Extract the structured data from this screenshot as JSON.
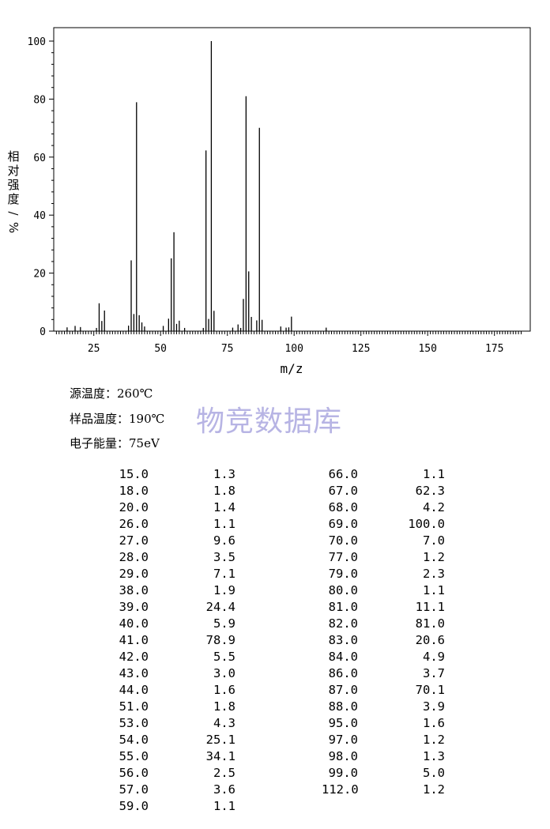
{
  "chart_data": {
    "type": "bar",
    "xlabel": "m/z",
    "ylabel": "相对强度/%",
    "xlim": [
      10,
      185
    ],
    "ylim": [
      0,
      100
    ],
    "x_ticks": [
      "25",
      "50",
      "75",
      "100",
      "125",
      "150",
      "175"
    ],
    "y_ticks": [
      "0",
      "20",
      "40",
      "60",
      "80",
      "100"
    ],
    "peaks": [
      [
        15.0,
        1.3
      ],
      [
        18.0,
        1.8
      ],
      [
        20.0,
        1.4
      ],
      [
        26.0,
        1.1
      ],
      [
        27.0,
        9.6
      ],
      [
        28.0,
        3.5
      ],
      [
        29.0,
        7.1
      ],
      [
        38.0,
        1.9
      ],
      [
        39.0,
        24.4
      ],
      [
        40.0,
        5.9
      ],
      [
        41.0,
        78.9
      ],
      [
        42.0,
        5.5
      ],
      [
        43.0,
        3.0
      ],
      [
        44.0,
        1.6
      ],
      [
        51.0,
        1.8
      ],
      [
        53.0,
        4.3
      ],
      [
        54.0,
        25.1
      ],
      [
        55.0,
        34.1
      ],
      [
        56.0,
        2.5
      ],
      [
        57.0,
        3.6
      ],
      [
        59.0,
        1.1
      ],
      [
        66.0,
        1.1
      ],
      [
        67.0,
        62.3
      ],
      [
        68.0,
        4.2
      ],
      [
        69.0,
        100.0
      ],
      [
        70.0,
        7.0
      ],
      [
        77.0,
        1.2
      ],
      [
        79.0,
        2.3
      ],
      [
        80.0,
        1.1
      ],
      [
        81.0,
        11.1
      ],
      [
        82.0,
        81.0
      ],
      [
        83.0,
        20.6
      ],
      [
        84.0,
        4.9
      ],
      [
        86.0,
        3.7
      ],
      [
        87.0,
        70.1
      ],
      [
        88.0,
        3.9
      ],
      [
        95.0,
        1.6
      ],
      [
        97.0,
        1.2
      ],
      [
        98.0,
        1.3
      ],
      [
        99.0,
        5.0
      ],
      [
        112.0,
        1.2
      ]
    ]
  },
  "conditions": {
    "source_temp": "源温度：260℃",
    "sample_temp": "样品温度：190℃",
    "electron_energy": "电子能量：75eV"
  },
  "watermark": "物竞数据库",
  "table": {
    "left": [
      [
        "15.0",
        "1.3"
      ],
      [
        "18.0",
        "1.8"
      ],
      [
        "20.0",
        "1.4"
      ],
      [
        "26.0",
        "1.1"
      ],
      [
        "27.0",
        "9.6"
      ],
      [
        "28.0",
        "3.5"
      ],
      [
        "29.0",
        "7.1"
      ],
      [
        "38.0",
        "1.9"
      ],
      [
        "39.0",
        "24.4"
      ],
      [
        "40.0",
        "5.9"
      ],
      [
        "41.0",
        "78.9"
      ],
      [
        "42.0",
        "5.5"
      ],
      [
        "43.0",
        "3.0"
      ],
      [
        "44.0",
        "1.6"
      ],
      [
        "51.0",
        "1.8"
      ],
      [
        "53.0",
        "4.3"
      ],
      [
        "54.0",
        "25.1"
      ],
      [
        "55.0",
        "34.1"
      ],
      [
        "56.0",
        "2.5"
      ],
      [
        "57.0",
        "3.6"
      ],
      [
        "59.0",
        "1.1"
      ]
    ],
    "right": [
      [
        "66.0",
        "1.1"
      ],
      [
        "67.0",
        "62.3"
      ],
      [
        "68.0",
        "4.2"
      ],
      [
        "69.0",
        "100.0"
      ],
      [
        "70.0",
        "7.0"
      ],
      [
        "77.0",
        "1.2"
      ],
      [
        "79.0",
        "2.3"
      ],
      [
        "80.0",
        "1.1"
      ],
      [
        "81.0",
        "11.1"
      ],
      [
        "82.0",
        "81.0"
      ],
      [
        "83.0",
        "20.6"
      ],
      [
        "84.0",
        "4.9"
      ],
      [
        "86.0",
        "3.7"
      ],
      [
        "87.0",
        "70.1"
      ],
      [
        "88.0",
        "3.9"
      ],
      [
        "95.0",
        "1.6"
      ],
      [
        "97.0",
        "1.2"
      ],
      [
        "98.0",
        "1.3"
      ],
      [
        "99.0",
        "5.0"
      ],
      [
        "112.0",
        "1.2"
      ]
    ]
  }
}
